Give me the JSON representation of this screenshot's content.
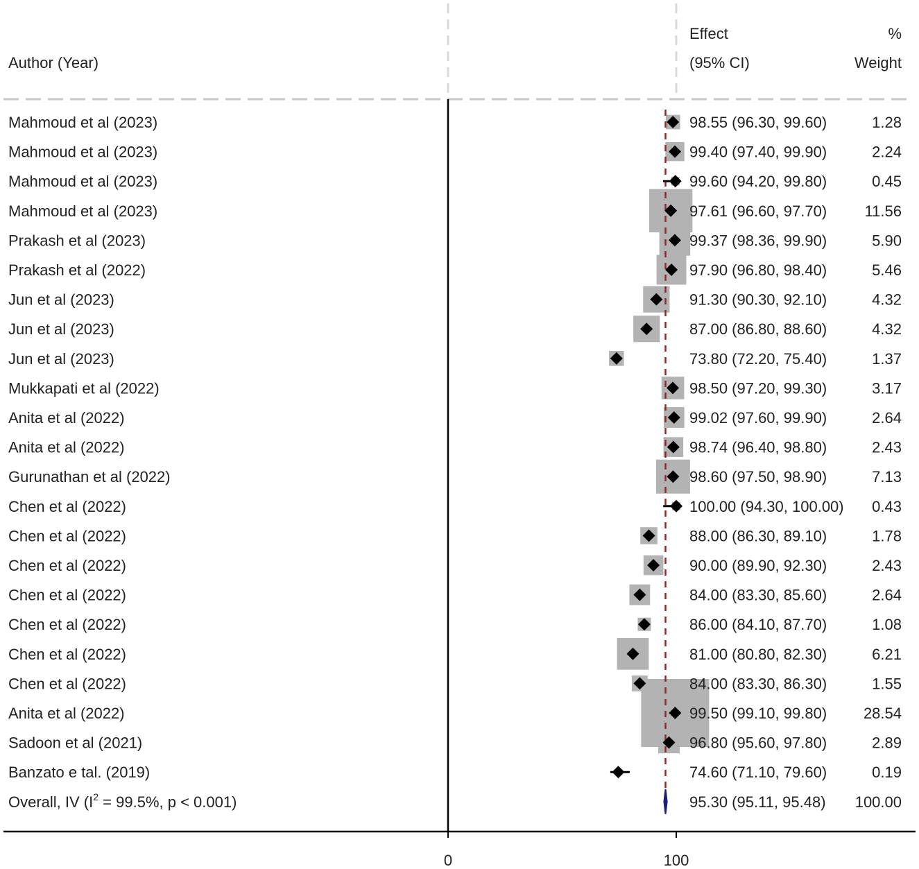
{
  "chart_data": {
    "type": "forest",
    "header": {
      "study_label": "Author (Year)",
      "effect_line1": "Effect",
      "effect_line2": "(95% CI)",
      "weight_line1": "%",
      "weight_line2": "Weight"
    },
    "x_ticks": [
      0,
      100
    ],
    "x_range": [
      0,
      100
    ],
    "reference_line": 0,
    "overall_line": 95.3,
    "studies": [
      {
        "label": "Mahmoud et al  (2023)",
        "effect": 98.55,
        "lower": 96.3,
        "upper": 99.6,
        "weight": 1.28,
        "ci_text": "98.55 (96.30, 99.60)",
        "weight_text": "1.28"
      },
      {
        "label": "Mahmoud et al  (2023)",
        "effect": 99.4,
        "lower": 97.4,
        "upper": 99.9,
        "weight": 2.24,
        "ci_text": "99.40 (97.40, 99.90)",
        "weight_text": "2.24"
      },
      {
        "label": "Mahmoud et al (2023)",
        "effect": 99.6,
        "lower": 94.2,
        "upper": 99.8,
        "weight": 0.45,
        "ci_text": "99.60 (94.20, 99.80)",
        "weight_text": "0.45"
      },
      {
        "label": "Mahmoud et al (2023)",
        "effect": 97.61,
        "lower": 96.6,
        "upper": 97.7,
        "weight": 11.56,
        "ci_text": "97.61 (96.60, 97.70)",
        "weight_text": "11.56"
      },
      {
        "label": "Prakash et al (2023)",
        "effect": 99.37,
        "lower": 98.36,
        "upper": 99.9,
        "weight": 5.9,
        "ci_text": "99.37 (98.36, 99.90)",
        "weight_text": "5.90"
      },
      {
        "label": "Prakash et al (2022)",
        "effect": 97.9,
        "lower": 96.8,
        "upper": 98.4,
        "weight": 5.46,
        "ci_text": "97.90 (96.80, 98.40)",
        "weight_text": "5.46"
      },
      {
        "label": "Jun et al (2023)",
        "effect": 91.3,
        "lower": 90.3,
        "upper": 92.1,
        "weight": 4.32,
        "ci_text": "91.30 (90.30, 92.10)",
        "weight_text": "4.32"
      },
      {
        "label": "Jun et al (2023)",
        "effect": 87.0,
        "lower": 86.8,
        "upper": 88.6,
        "weight": 4.32,
        "ci_text": "87.00 (86.80, 88.60)",
        "weight_text": "4.32"
      },
      {
        "label": "Jun et al (2023)",
        "effect": 73.8,
        "lower": 72.2,
        "upper": 75.4,
        "weight": 1.37,
        "ci_text": "73.80 (72.20, 75.40)",
        "weight_text": "1.37"
      },
      {
        "label": "Mukkapati et al (2022)",
        "effect": 98.5,
        "lower": 97.2,
        "upper": 99.3,
        "weight": 3.17,
        "ci_text": "98.50 (97.20, 99.30)",
        "weight_text": "3.17"
      },
      {
        "label": "Anita et al (2022)",
        "effect": 99.02,
        "lower": 97.6,
        "upper": 99.9,
        "weight": 2.64,
        "ci_text": "99.02 (97.60, 99.90)",
        "weight_text": "2.64"
      },
      {
        "label": "Anita et al (2022)",
        "effect": 98.74,
        "lower": 96.4,
        "upper": 98.8,
        "weight": 2.43,
        "ci_text": "98.74 (96.40, 98.80)",
        "weight_text": "2.43"
      },
      {
        "label": "Gurunathan et al (2022)",
        "effect": 98.6,
        "lower": 97.5,
        "upper": 98.9,
        "weight": 7.13,
        "ci_text": "98.60 (97.50, 98.90)",
        "weight_text": "7.13"
      },
      {
        "label": "Chen et al (2022)",
        "effect": 100.0,
        "lower": 94.3,
        "upper": 100.0,
        "weight": 0.43,
        "ci_text": "100.00 (94.30, 100.00)",
        "weight_text": "0.43"
      },
      {
        "label": "Chen et al  (2022)",
        "effect": 88.0,
        "lower": 86.3,
        "upper": 89.1,
        "weight": 1.78,
        "ci_text": "88.00 (86.30, 89.10)",
        "weight_text": "1.78"
      },
      {
        "label": "Chen et al (2022)",
        "effect": 90.0,
        "lower": 89.9,
        "upper": 92.3,
        "weight": 2.43,
        "ci_text": "90.00 (89.90, 92.30)",
        "weight_text": "2.43"
      },
      {
        "label": "Chen et al (2022)",
        "effect": 84.0,
        "lower": 83.3,
        "upper": 85.6,
        "weight": 2.64,
        "ci_text": "84.00 (83.30, 85.60)",
        "weight_text": "2.64"
      },
      {
        "label": "Chen et al  (2022)",
        "effect": 86.0,
        "lower": 84.1,
        "upper": 87.7,
        "weight": 1.08,
        "ci_text": "86.00 (84.10, 87.70)",
        "weight_text": "1.08"
      },
      {
        "label": "Chen et al  (2022)",
        "effect": 81.0,
        "lower": 80.8,
        "upper": 82.3,
        "weight": 6.21,
        "ci_text": "81.00 (80.80, 82.30)",
        "weight_text": "6.21"
      },
      {
        "label": "Chen et al  (2022)",
        "effect": 84.0,
        "lower": 83.3,
        "upper": 86.3,
        "weight": 1.55,
        "ci_text": "84.00 (83.30, 86.30)",
        "weight_text": "1.55"
      },
      {
        "label": "Anita et al (2022)",
        "effect": 99.5,
        "lower": 99.1,
        "upper": 99.8,
        "weight": 28.54,
        "ci_text": "99.50 (99.10, 99.80)",
        "weight_text": "28.54"
      },
      {
        "label": "Sadoon et al (2021)",
        "effect": 96.8,
        "lower": 95.6,
        "upper": 97.8,
        "weight": 2.89,
        "ci_text": "96.80 (95.60, 97.80)",
        "weight_text": "2.89"
      },
      {
        "label": "Banzato e tal. (2019)",
        "effect": 74.6,
        "lower": 71.1,
        "upper": 79.6,
        "weight": 0.19,
        "ci_text": "74.60 (71.10, 79.60)",
        "weight_text": "0.19"
      }
    ],
    "overall": {
      "label_prefix": "Overall, IV (I",
      "label_sup": "2",
      "label_suffix": " = 99.5%, p < 0.001)",
      "effect": 95.3,
      "lower": 95.11,
      "upper": 95.48,
      "ci_text": "95.30 (95.11, 95.48)",
      "weight_text": "100.00"
    },
    "colors": {
      "box": "#b3b3b3",
      "marker": "#000000",
      "overall_line": "#8b2a2a",
      "overall_diamond": "#1f1f7a",
      "dash_grid": "#d9d9d9",
      "axis": "#000000"
    }
  }
}
